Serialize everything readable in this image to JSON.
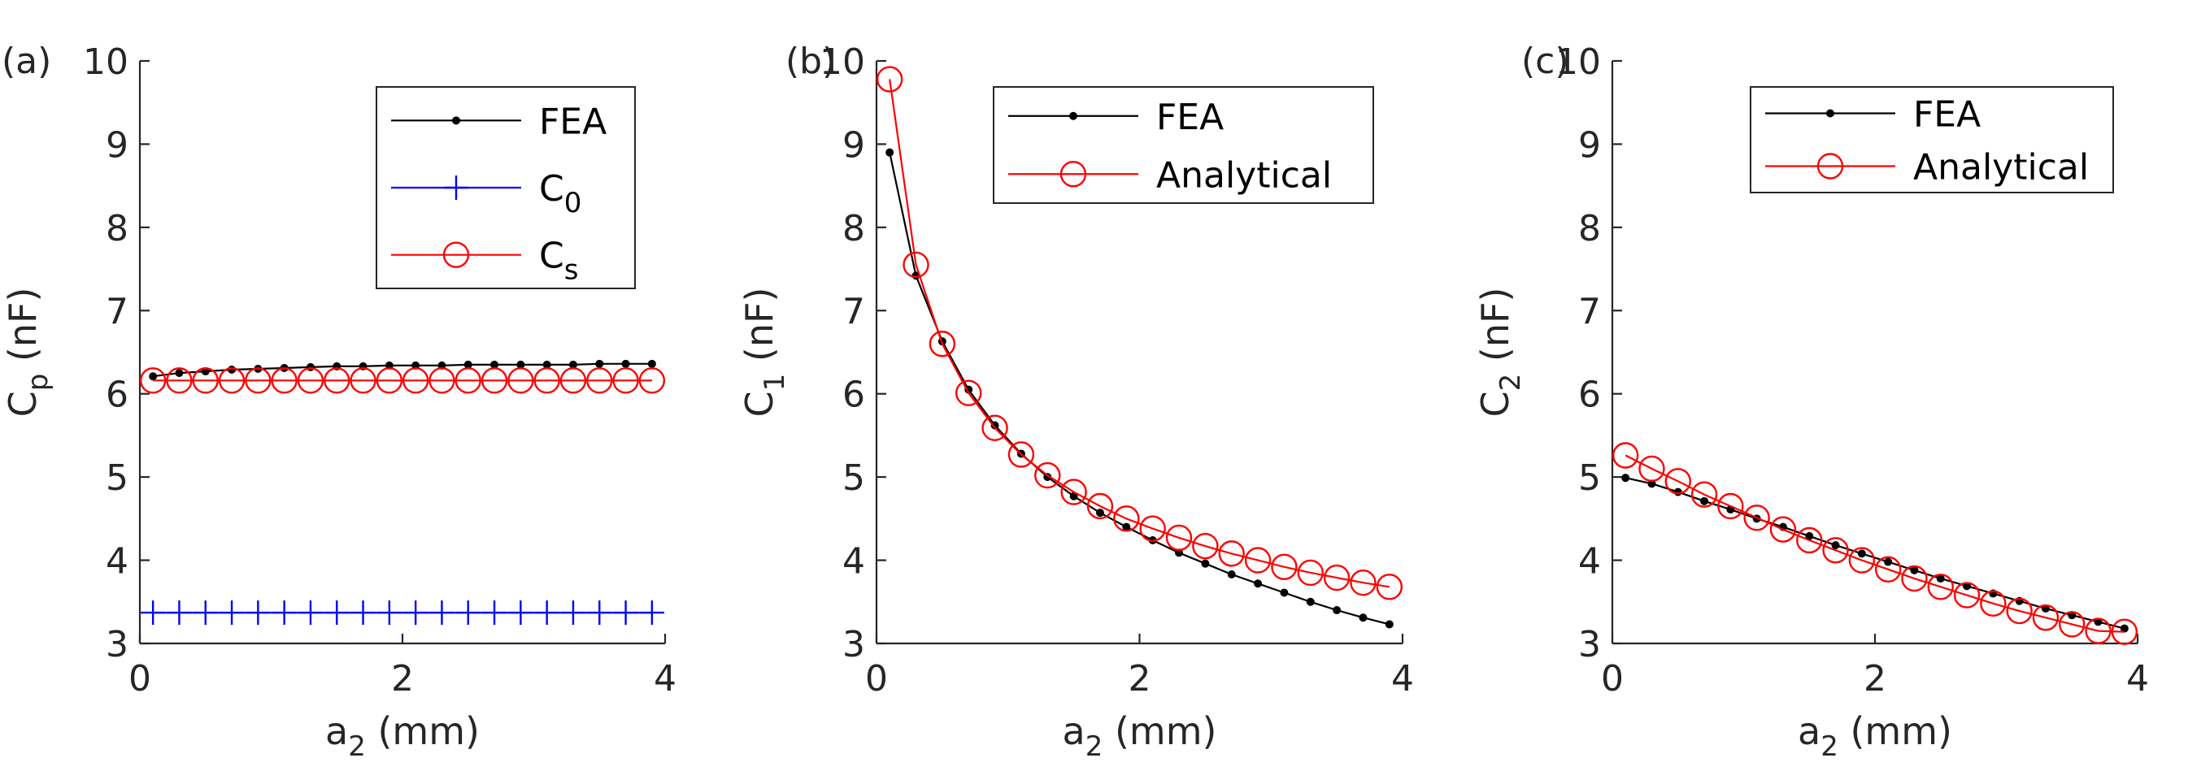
{
  "figure": {
    "panels": [
      {
        "label": "(a)",
        "ylabel_main": "C",
        "ylabel_sub": "p",
        "ylabel_unit": " (nF)",
        "xlabel_main": "a",
        "xlabel_sub": "2",
        "xlabel_unit": " (mm)"
      },
      {
        "label": "(b)",
        "ylabel_main": "C",
        "ylabel_sub": "1",
        "ylabel_unit": " (nF)",
        "xlabel_main": "a",
        "xlabel_sub": "2",
        "xlabel_unit": " (mm)"
      },
      {
        "label": "(c)",
        "ylabel_main": "C",
        "ylabel_sub": "2",
        "ylabel_unit": " (nF)",
        "xlabel_main": "a",
        "xlabel_sub": "2",
        "xlabel_unit": " (mm)"
      }
    ]
  },
  "colors": {
    "fea": "#000000",
    "c0": "#0000ff",
    "analytical": "#ff0000",
    "axis": "#262626"
  },
  "chart_data": [
    {
      "type": "line",
      "panel": "(a)",
      "xlabel": "a2 (mm)",
      "ylabel": "Cp (nF)",
      "xlim": [
        0,
        4
      ],
      "ylim": [
        3,
        10
      ],
      "xticks": [
        0,
        2,
        4
      ],
      "yticks": [
        3,
        4,
        5,
        6,
        7,
        8,
        9,
        10
      ],
      "legend_position": "top-right",
      "series": [
        {
          "name": "FEA",
          "legend_main": "FEA",
          "legend_sub": "",
          "marker": "dot",
          "color": "#000000",
          "x": [
            0.1,
            0.3,
            0.5,
            0.7,
            0.9,
            1.1,
            1.3,
            1.5,
            1.7,
            1.9,
            2.1,
            2.3,
            2.5,
            2.7,
            2.9,
            3.1,
            3.3,
            3.5,
            3.7,
            3.9
          ],
          "y": [
            6.21,
            6.25,
            6.27,
            6.29,
            6.3,
            6.31,
            6.32,
            6.33,
            6.33,
            6.34,
            6.34,
            6.34,
            6.35,
            6.35,
            6.35,
            6.35,
            6.35,
            6.36,
            6.36,
            6.36
          ]
        },
        {
          "name": "C0",
          "legend_main": "C",
          "legend_sub": "0",
          "marker": "plus",
          "color": "#0000ff",
          "x": [
            0.1,
            0.3,
            0.5,
            0.7,
            0.9,
            1.1,
            1.3,
            1.5,
            1.7,
            1.9,
            2.1,
            2.3,
            2.5,
            2.7,
            2.9,
            3.1,
            3.3,
            3.5,
            3.7,
            3.9
          ],
          "y": [
            3.37,
            3.37,
            3.37,
            3.37,
            3.37,
            3.37,
            3.37,
            3.37,
            3.37,
            3.37,
            3.37,
            3.37,
            3.37,
            3.37,
            3.37,
            3.37,
            3.37,
            3.37,
            3.37,
            3.37
          ]
        },
        {
          "name": "Cs",
          "legend_main": "C",
          "legend_sub": "s",
          "marker": "circle",
          "color": "#ff0000",
          "x": [
            0.1,
            0.3,
            0.5,
            0.7,
            0.9,
            1.1,
            1.3,
            1.5,
            1.7,
            1.9,
            2.1,
            2.3,
            2.5,
            2.7,
            2.9,
            3.1,
            3.3,
            3.5,
            3.7,
            3.9
          ],
          "y": [
            6.16,
            6.16,
            6.16,
            6.16,
            6.16,
            6.16,
            6.16,
            6.16,
            6.16,
            6.16,
            6.16,
            6.16,
            6.16,
            6.16,
            6.16,
            6.16,
            6.16,
            6.16,
            6.16,
            6.16
          ]
        }
      ]
    },
    {
      "type": "line",
      "panel": "(b)",
      "xlabel": "a2 (mm)",
      "ylabel": "C1 (nF)",
      "xlim": [
        0,
        4
      ],
      "ylim": [
        3,
        10
      ],
      "xticks": [
        0,
        2,
        4
      ],
      "yticks": [
        3,
        4,
        5,
        6,
        7,
        8,
        9,
        10
      ],
      "legend_position": "top-right",
      "series": [
        {
          "name": "FEA",
          "legend_main": "FEA",
          "legend_sub": "",
          "marker": "dot",
          "color": "#000000",
          "x": [
            0.1,
            0.3,
            0.5,
            0.7,
            0.9,
            1.1,
            1.3,
            1.5,
            1.7,
            1.9,
            2.1,
            2.3,
            2.5,
            2.7,
            2.9,
            3.1,
            3.3,
            3.5,
            3.7,
            3.9
          ],
          "y": [
            8.9,
            7.42,
            6.63,
            6.05,
            5.62,
            5.28,
            5.0,
            4.77,
            4.57,
            4.4,
            4.24,
            4.09,
            3.96,
            3.83,
            3.72,
            3.61,
            3.5,
            3.4,
            3.31,
            3.23
          ]
        },
        {
          "name": "Analytical",
          "legend_main": "Analytical",
          "legend_sub": "",
          "marker": "circle",
          "color": "#ff0000",
          "x": [
            0.1,
            0.3,
            0.5,
            0.7,
            0.9,
            1.1,
            1.3,
            1.5,
            1.7,
            1.9,
            2.1,
            2.3,
            2.5,
            2.7,
            2.9,
            3.1,
            3.3,
            3.5,
            3.7,
            3.9
          ],
          "y": [
            9.78,
            7.55,
            6.6,
            6.01,
            5.59,
            5.27,
            5.02,
            4.82,
            4.65,
            4.5,
            4.38,
            4.27,
            4.17,
            4.08,
            4.0,
            3.92,
            3.85,
            3.79,
            3.73,
            3.68
          ]
        }
      ]
    },
    {
      "type": "line",
      "panel": "(c)",
      "xlabel": "a2 (mm)",
      "ylabel": "C2 (nF)",
      "xlim": [
        0,
        4
      ],
      "ylim": [
        3,
        10
      ],
      "xticks": [
        0,
        2,
        4
      ],
      "yticks": [
        3,
        4,
        5,
        6,
        7,
        8,
        9,
        10
      ],
      "legend_position": "top-right",
      "series": [
        {
          "name": "FEA",
          "legend_main": "FEA",
          "legend_sub": "",
          "marker": "dot",
          "color": "#000000",
          "x": [
            0.1,
            0.3,
            0.5,
            0.7,
            0.9,
            1.1,
            1.3,
            1.5,
            1.7,
            1.9,
            2.1,
            2.3,
            2.5,
            2.7,
            2.9,
            3.1,
            3.3,
            3.5,
            3.7,
            3.9
          ],
          "y": [
            4.99,
            4.92,
            4.82,
            4.71,
            4.61,
            4.5,
            4.4,
            4.29,
            4.18,
            4.08,
            3.98,
            3.88,
            3.78,
            3.69,
            3.6,
            3.51,
            3.42,
            3.34,
            3.26,
            3.18
          ]
        },
        {
          "name": "Analytical",
          "legend_main": "Analytical",
          "legend_sub": "",
          "marker": "circle",
          "color": "#ff0000",
          "x": [
            0.1,
            0.3,
            0.5,
            0.7,
            0.9,
            1.1,
            1.3,
            1.5,
            1.7,
            1.9,
            2.1,
            2.3,
            2.5,
            2.7,
            2.9,
            3.1,
            3.3,
            3.5,
            3.7,
            3.9
          ],
          "y": [
            5.26,
            5.1,
            4.95,
            4.79,
            4.65,
            4.51,
            4.37,
            4.24,
            4.12,
            4.0,
            3.89,
            3.78,
            3.68,
            3.58,
            3.48,
            3.39,
            3.31,
            3.23,
            3.15,
            3.14
          ]
        }
      ]
    }
  ]
}
